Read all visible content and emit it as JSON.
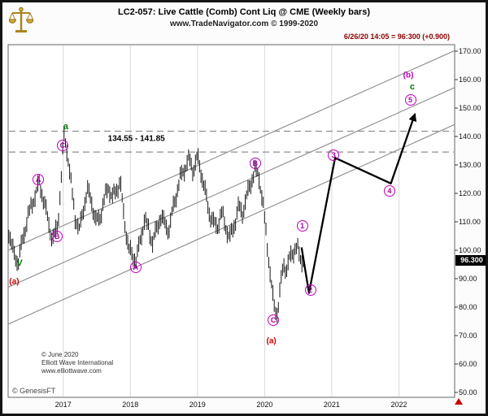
{
  "window": {
    "title_line1": "LC2-057:  Live Cattle (Comb) Cont Liq @ CME  (Weekly bars)",
    "title_line2": "www.TradeNavigator.com © 1999-2020",
    "quote_line": "6/26/20 14:05 = 96:300 (+0.900)",
    "footer_left": "© GenesisFT"
  },
  "watermark": {
    "line1": "© June 2020",
    "line2": "Elliott Wave International",
    "line3": "www.elliottwave.com"
  },
  "colors": {
    "wave_circle": "#bf00bf",
    "green_label": "#007a00",
    "red_label": "#cc0000",
    "quote_text": "#8b0000",
    "bars": "#161616",
    "grid": "#d8d8d8",
    "dashed_line": "#8f8f8f",
    "channel_line": "#8a8a8a",
    "price_box_bg": "#000000",
    "price_box_text": "#ffffff"
  },
  "chart_data": {
    "type": "bar",
    "instrument": "LC2-057 Live Cattle (Comb) Cont Liq @ CME",
    "timeframe": "Weekly bars",
    "last_price": "96.300",
    "change": "+0.900",
    "x_axis": {
      "years": [
        2017,
        2018,
        2019,
        2020,
        2021,
        2022
      ],
      "t_min": 2016.18,
      "t_max": 2022.83
    },
    "y_axis": {
      "min": 50,
      "max": 170,
      "step": 10,
      "labels": [
        "170.00",
        "160.00",
        "150.00",
        "140.00",
        "130.00",
        "120.00",
        "110.00",
        "100.00",
        "90.00",
        "80.00",
        "70.00",
        "60.00",
        "50.00"
      ]
    },
    "price_anchors": [
      [
        2016.19,
        107
      ],
      [
        2016.26,
        100
      ],
      [
        2016.33,
        96
      ],
      [
        2016.41,
        104
      ],
      [
        2016.48,
        112
      ],
      [
        2016.55,
        118
      ],
      [
        2016.64,
        124
      ],
      [
        2016.7,
        118
      ],
      [
        2016.77,
        110
      ],
      [
        2016.84,
        104
      ],
      [
        2016.92,
        110
      ],
      [
        2016.96,
        122
      ],
      [
        2017.01,
        140
      ],
      [
        2017.06,
        134
      ],
      [
        2017.12,
        122
      ],
      [
        2017.18,
        112
      ],
      [
        2017.24,
        108
      ],
      [
        2017.3,
        115
      ],
      [
        2017.36,
        120
      ],
      [
        2017.42,
        117
      ],
      [
        2017.48,
        110
      ],
      [
        2017.55,
        113
      ],
      [
        2017.61,
        118
      ],
      [
        2017.67,
        122
      ],
      [
        2017.73,
        117
      ],
      [
        2017.79,
        121
      ],
      [
        2017.85,
        125
      ],
      [
        2017.88,
        118
      ],
      [
        2017.93,
        108
      ],
      [
        2017.98,
        100
      ],
      [
        2018.03,
        97
      ],
      [
        2018.09,
        96
      ],
      [
        2018.15,
        104
      ],
      [
        2018.21,
        112
      ],
      [
        2018.27,
        108
      ],
      [
        2018.33,
        102
      ],
      [
        2018.39,
        106
      ],
      [
        2018.45,
        112
      ],
      [
        2018.52,
        110
      ],
      [
        2018.58,
        108
      ],
      [
        2018.64,
        115
      ],
      [
        2018.7,
        120
      ],
      [
        2018.76,
        126
      ],
      [
        2018.82,
        130
      ],
      [
        2018.88,
        133
      ],
      [
        2018.94,
        128
      ],
      [
        2019.0,
        132
      ],
      [
        2019.06,
        126
      ],
      [
        2019.12,
        120
      ],
      [
        2019.18,
        114
      ],
      [
        2019.24,
        110
      ],
      [
        2019.3,
        108
      ],
      [
        2019.36,
        112
      ],
      [
        2019.42,
        108
      ],
      [
        2019.48,
        105
      ],
      [
        2019.55,
        110
      ],
      [
        2019.61,
        115
      ],
      [
        2019.67,
        112
      ],
      [
        2019.73,
        118
      ],
      [
        2019.79,
        124
      ],
      [
        2019.85,
        129
      ],
      [
        2019.91,
        127
      ],
      [
        2019.95,
        120
      ],
      [
        2019.99,
        112
      ],
      [
        2020.04,
        101
      ],
      [
        2020.09,
        90
      ],
      [
        2020.14,
        81
      ],
      [
        2020.19,
        79
      ],
      [
        2020.24,
        88
      ],
      [
        2020.28,
        95
      ],
      [
        2020.33,
        92
      ],
      [
        2020.38,
        97
      ],
      [
        2020.43,
        100
      ],
      [
        2020.48,
        102
      ],
      [
        2020.53,
        98
      ],
      [
        2020.58,
        96.3
      ]
    ],
    "projection": [
      [
        2020.55,
        101
      ],
      [
        2020.66,
        85
      ],
      [
        2021.05,
        132.5
      ],
      [
        2021.88,
        123.5
      ],
      [
        2022.24,
        148
      ]
    ],
    "resistance_zone": {
      "high": 141.85,
      "low": 134.55,
      "label": "134.55 - 141.85",
      "label_t": 2018.09,
      "label_p": 139.2
    },
    "channel_lines": [
      [
        [
          2016.18,
          100
        ],
        [
          2022.83,
          170.2
        ]
      ],
      [
        [
          2016.18,
          87
        ],
        [
          2022.83,
          157.2
        ]
      ],
      [
        [
          2016.18,
          74
        ],
        [
          2022.83,
          144.2
        ]
      ]
    ],
    "wave_labels": [
      {
        "t": 2016.27,
        "p": 89,
        "text": "(a)",
        "style": "red"
      },
      {
        "t": 2016.35,
        "p": 95.5,
        "text": "V",
        "style": "green"
      },
      {
        "t": 2016.63,
        "p": 125,
        "text": "A",
        "style": "circle"
      },
      {
        "t": 2016.91,
        "p": 105,
        "text": "B",
        "style": "circle"
      },
      {
        "t": 2016.99,
        "p": 137,
        "text": "C",
        "style": "circle"
      },
      {
        "t": 2017.04,
        "p": 143.5,
        "text": "a",
        "style": "green"
      },
      {
        "t": 2018.08,
        "p": 94,
        "text": "A",
        "style": "circle"
      },
      {
        "t": 2019.86,
        "p": 130.5,
        "text": "B",
        "style": "circle"
      },
      {
        "t": 2020.13,
        "p": 75.5,
        "text": "C",
        "style": "circle"
      },
      {
        "t": 2020.1,
        "p": 68,
        "text": "(a)",
        "style": "red"
      },
      {
        "t": 2020.56,
        "p": 108.5,
        "text": "1",
        "style": "circle"
      },
      {
        "t": 2020.68,
        "p": 86,
        "text": "2",
        "style": "circle"
      },
      {
        "t": 2021.03,
        "p": 133.5,
        "text": "3",
        "style": "circle"
      },
      {
        "t": 2021.86,
        "p": 121,
        "text": "4",
        "style": "circle"
      },
      {
        "t": 2022.17,
        "p": 153,
        "text": "5",
        "style": "circle"
      },
      {
        "t": 2022.2,
        "p": 157.5,
        "text": "c",
        "style": "green"
      },
      {
        "t": 2022.14,
        "p": 161.5,
        "text": "(b)",
        "style": "magenta"
      }
    ]
  }
}
